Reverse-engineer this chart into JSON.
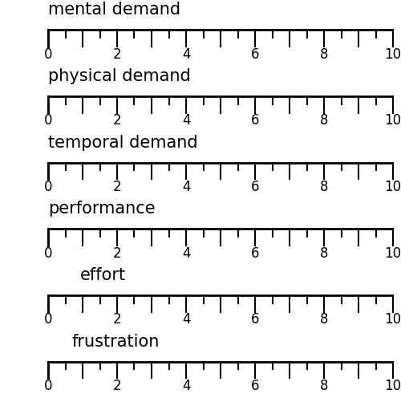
{
  "scales": [
    "mental demand",
    "physical demand",
    "temporal demand",
    "performance",
    "effort",
    "frustration"
  ],
  "scale_min": 0,
  "scale_max": 10,
  "major_tick_labels": [
    0,
    2,
    4,
    6,
    8,
    10
  ],
  "background_color": "#ffffff",
  "line_color": "#000000",
  "text_color": "#000000",
  "label_fontsize": 15,
  "tick_fontsize": 12,
  "fig_width": 5.0,
  "fig_height": 4.96,
  "dpi": 100,
  "label_indent": [
    0,
    0,
    0,
    0,
    0.08,
    0.06
  ],
  "n_half_ticks": 20,
  "major_tick_down": 0.25,
  "minor_tick_down": 0.12
}
